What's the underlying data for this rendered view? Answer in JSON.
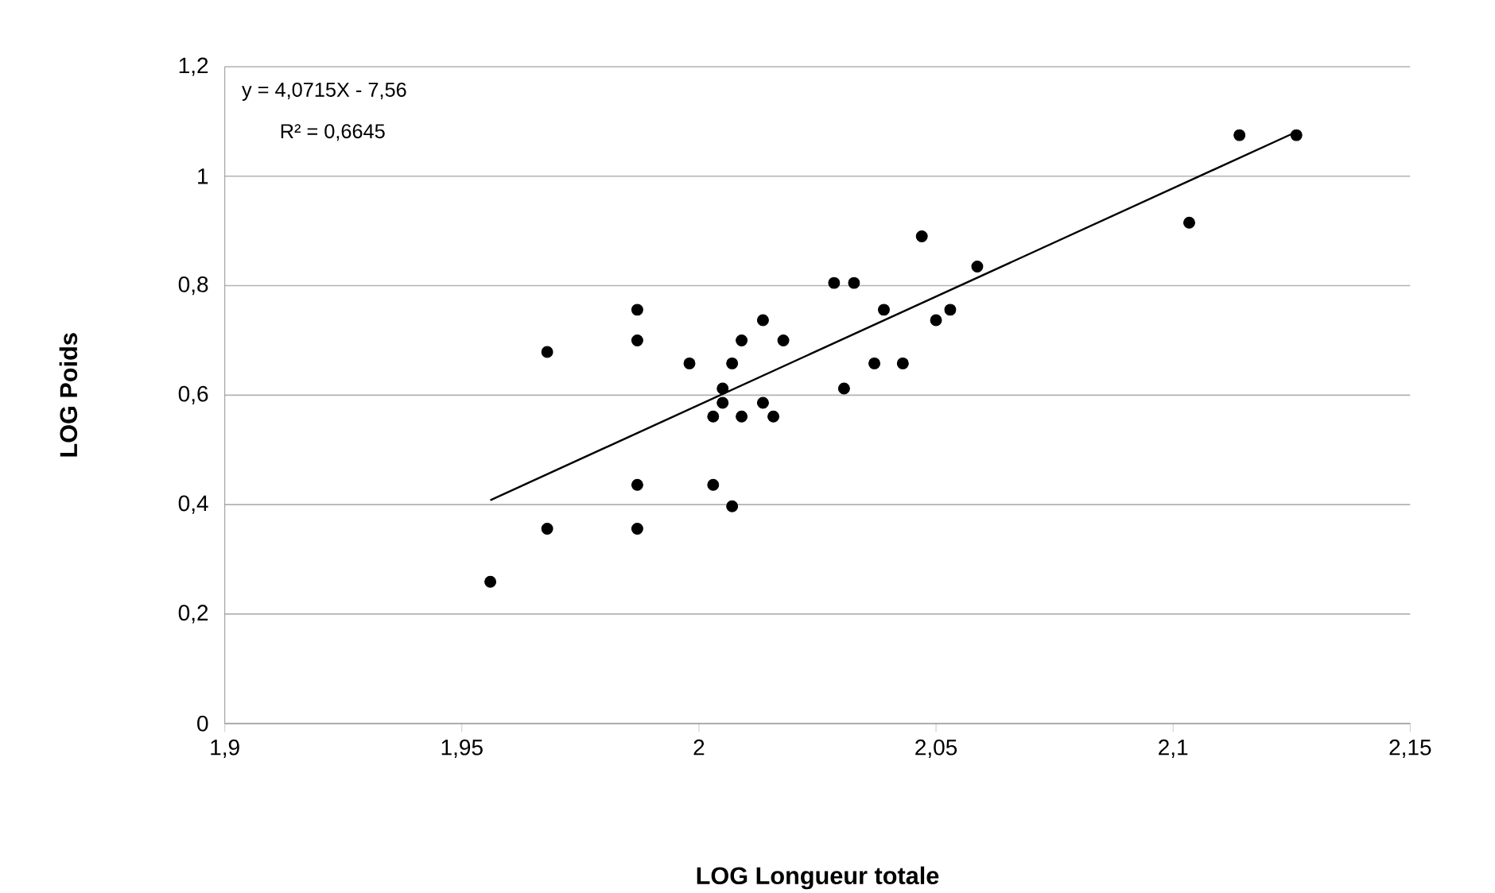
{
  "chart_data": {
    "type": "scatter",
    "xlabel": "LOG Longueur totale",
    "ylabel": "LOG Poids",
    "xlim": [
      1.9,
      2.15
    ],
    "ylim": [
      0,
      1.2
    ],
    "xticks": [
      {
        "value": 1.9,
        "label": "1,9"
      },
      {
        "value": 1.95,
        "label": "1,95"
      },
      2,
      {
        "value": 2.05,
        "label": "2,05"
      },
      {
        "value": 2.1,
        "label": "2,1"
      },
      {
        "value": 2.15,
        "label": "2,15"
      }
    ],
    "yticks": [
      0,
      {
        "value": 0.2,
        "label": "0,2"
      },
      {
        "value": 0.4,
        "label": "0,4"
      },
      {
        "value": 0.6,
        "label": "0,6"
      },
      {
        "value": 0.8,
        "label": "0,8"
      },
      1,
      {
        "value": 1.2,
        "label": "1,2"
      }
    ],
    "grid": "y",
    "marker": "circle",
    "annotations": [
      "y = 4,0715X - 7,56",
      "R² = 0,6645"
    ],
    "series": [
      {
        "color": "#000000",
        "x": [
          1.956,
          1.968,
          1.968,
          1.987,
          1.987,
          1.987,
          1.987,
          1.998,
          2.003,
          2.003,
          2.005,
          2.005,
          2.007,
          2.007,
          2.009,
          2.009,
          2.0135,
          2.0135,
          2.0157,
          2.0178,
          2.0285,
          2.0327,
          2.0306,
          2.037,
          2.039,
          2.043,
          2.047,
          2.05,
          2.053,
          2.0587,
          2.1034,
          2.114,
          2.126
        ],
        "values": [
          0.259,
          0.679,
          0.356,
          0.756,
          0.7,
          0.436,
          0.356,
          0.658,
          0.561,
          0.436,
          0.612,
          0.586,
          0.658,
          0.397,
          0.7,
          0.561,
          0.737,
          0.586,
          0.561,
          0.7,
          0.805,
          0.805,
          0.612,
          0.658,
          0.756,
          0.658,
          0.89,
          0.737,
          0.756,
          0.835,
          0.915,
          1.075,
          1.075
        ]
      },
      {
        "type": "line",
        "color": "#000000",
        "marker": "none",
        "x": [
          1.956,
          2.126
        ],
        "values": [
          0.408,
          1.081
        ]
      }
    ]
  }
}
